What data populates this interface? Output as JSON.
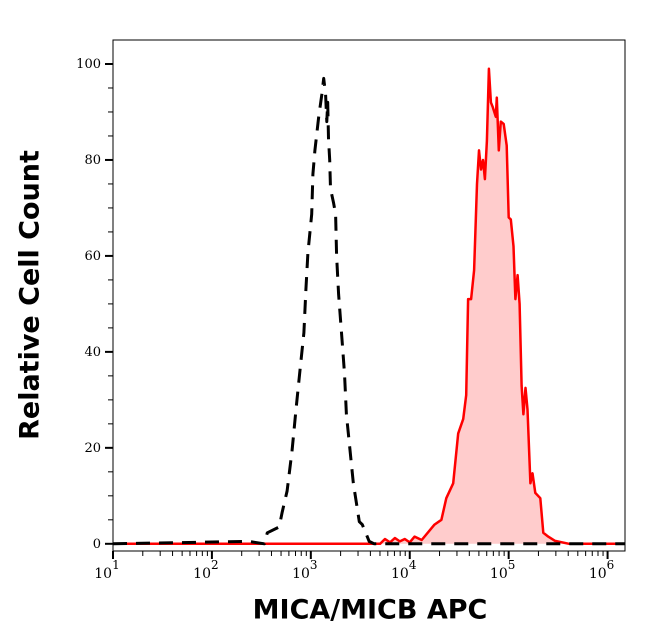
{
  "chart_data": {
    "type": "area",
    "title": "",
    "xlabel": "MICA/MICB APC",
    "ylabel": "Relative Cell Count",
    "x_scale": "log",
    "xlim": [
      10,
      1500000
    ],
    "ylim": [
      -1.5,
      105
    ],
    "x_ticks": [
      10,
      100,
      1000,
      10000,
      100000,
      1000000
    ],
    "x_tick_labels": [
      "10^1",
      "10^2",
      "10^3",
      "10^4",
      "10^5",
      "10^6"
    ],
    "y_ticks": [
      0,
      20,
      40,
      60,
      80,
      100
    ],
    "y_tick_labels": [
      "0",
      "20",
      "40",
      "60",
      "80",
      "100"
    ],
    "grid": false,
    "legend": "none",
    "series": [
      {
        "style": "filled solid line",
        "color": "#ff0000",
        "fill": "#ffcccc",
        "x": [
          10,
          5010,
          5620,
          6310,
          7080,
          7940,
          8910,
          10000,
          11200,
          13200,
          17800,
          20900,
          23400,
          27500,
          30900,
          34700,
          37200,
          38900,
          41700,
          44700,
          47900,
          50100,
          52500,
          55000,
          57500,
          60300,
          63100,
          66100,
          69200,
          74100,
          75900,
          79400,
          83200,
          89100,
          95500,
          100000,
          105000,
          112000,
          115000,
          117000,
          123000,
          129000,
          135000,
          141000,
          148000,
          155000,
          166000,
          174000,
          186000,
          209000,
          224000,
          251000,
          295000,
          407000,
          1500000
        ],
        "y": [
          0,
          0,
          1,
          0.3,
          1.2,
          0.5,
          1,
          0.3,
          1.5,
          0.8,
          4,
          5,
          9.5,
          12.6,
          23,
          26,
          31,
          51,
          51,
          57,
          75,
          82,
          78,
          80,
          76,
          84,
          99,
          92,
          91,
          89,
          93,
          82,
          88,
          87.5,
          83,
          68,
          67.6,
          62,
          55,
          51,
          56,
          50,
          33,
          27,
          32.5,
          28,
          12.6,
          14.7,
          10.6,
          9.5,
          2.3,
          1.5,
          0.6,
          0,
          0
        ]
      },
      {
        "style": "dashed line",
        "color": "#000000",
        "x": [
          10,
          234,
          339,
          363,
          479,
          513,
          575,
          646,
          708,
          776,
          851,
          891,
          933,
          1020,
          1050,
          1100,
          1150,
          1200,
          1290,
          1350,
          1410,
          1450,
          1480,
          1510,
          1550,
          1580,
          1700,
          1780,
          1820,
          1910,
          2040,
          2190,
          2290,
          2450,
          2690,
          3090,
          3310,
          3890,
          4370,
          1500000
        ],
        "y": [
          0,
          0.5,
          0,
          2.3,
          3.5,
          6.6,
          11,
          19.5,
          28,
          36,
          44,
          53,
          60.6,
          68.7,
          77,
          82,
          85.5,
          89,
          93.6,
          97,
          93.6,
          88,
          92,
          84.5,
          80,
          74,
          71,
          68.7,
          60,
          52,
          44,
          35.5,
          27,
          21,
          12.7,
          4.6,
          4,
          0.5,
          0,
          0
        ]
      }
    ]
  }
}
